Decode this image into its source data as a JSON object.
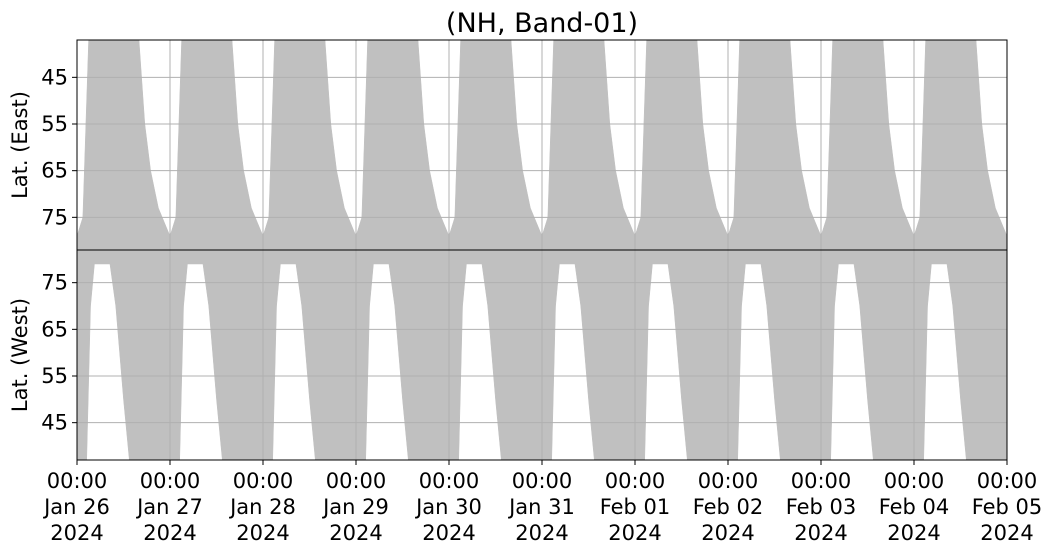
{
  "chart_data": [
    {
      "type": "area",
      "title": "(NH, Band-01)",
      "ylabel": "Lat. (East)",
      "color": "#c0c0c0",
      "grid": true,
      "ylim": [
        82,
        37
      ],
      "yticks": [
        45,
        55,
        65,
        75
      ],
      "x": [
        "2024-01-26 00:00",
        "2024-01-26 01:30",
        "2024-01-26 03:00",
        "2024-01-26 16:00",
        "2024-01-26 17:30",
        "2024-01-26 19:00",
        "2024-01-26 21:00",
        "2024-01-26 23:00",
        "2024-01-27 00:00",
        "2024-01-27 01:30",
        "2024-01-27 03:00",
        "2024-01-27 16:00",
        "2024-01-27 17:30",
        "2024-01-27 19:00",
        "2024-01-27 21:00",
        "2024-01-27 23:00",
        "2024-01-28 00:00",
        "2024-01-28 01:30",
        "2024-01-28 03:00",
        "2024-01-28 16:00",
        "2024-01-28 17:30",
        "2024-01-28 19:00",
        "2024-01-28 21:00",
        "2024-01-28 23:00",
        "2024-01-29 00:00",
        "2024-01-29 01:30",
        "2024-01-29 03:00",
        "2024-01-29 16:00",
        "2024-01-29 17:30",
        "2024-01-29 19:00",
        "2024-01-29 21:00",
        "2024-01-29 23:00",
        "2024-01-30 00:00",
        "2024-01-30 01:30",
        "2024-01-30 03:00",
        "2024-01-30 16:00",
        "2024-01-30 17:30",
        "2024-01-30 19:00",
        "2024-01-30 21:00",
        "2024-01-30 23:00",
        "2024-01-31 00:00",
        "2024-01-31 01:30",
        "2024-01-31 03:00",
        "2024-01-31 16:00",
        "2024-01-31 17:30",
        "2024-01-31 19:00",
        "2024-01-31 21:00",
        "2024-01-31 23:00",
        "2024-02-01 00:00",
        "2024-02-01 01:30",
        "2024-02-01 03:00",
        "2024-02-01 16:00",
        "2024-02-01 17:30",
        "2024-02-01 19:00",
        "2024-02-01 21:00",
        "2024-02-01 23:00",
        "2024-02-02 00:00",
        "2024-02-02 01:30",
        "2024-02-02 03:00",
        "2024-02-02 16:00",
        "2024-02-02 17:30",
        "2024-02-02 19:00",
        "2024-02-02 21:00",
        "2024-02-02 23:00",
        "2024-02-03 00:00",
        "2024-02-03 01:30",
        "2024-02-03 03:00",
        "2024-02-03 16:00",
        "2024-02-03 17:30",
        "2024-02-03 19:00",
        "2024-02-03 21:00",
        "2024-02-03 23:00",
        "2024-02-04 00:00",
        "2024-02-04 01:30",
        "2024-02-04 03:00",
        "2024-02-04 16:00",
        "2024-02-04 17:30",
        "2024-02-04 19:00",
        "2024-02-04 21:00",
        "2024-02-04 23:00",
        "2024-02-05 00:00"
      ],
      "values": [
        79,
        75,
        37,
        37,
        55,
        65,
        73,
        77,
        79,
        75,
        37,
        37,
        55,
        65,
        73,
        77,
        79,
        75,
        37,
        37,
        55,
        65,
        73,
        77,
        79,
        75,
        37,
        37,
        55,
        65,
        73,
        77,
        79,
        75,
        37,
        37,
        55,
        65,
        73,
        77,
        79,
        75,
        37,
        37,
        55,
        65,
        73,
        77,
        79,
        75,
        37,
        37,
        55,
        65,
        73,
        77,
        79,
        75,
        37,
        37,
        55,
        65,
        73,
        77,
        79,
        75,
        37,
        37,
        55,
        65,
        73,
        77,
        79,
        75,
        37,
        37,
        55,
        65,
        73,
        77,
        79
      ]
    },
    {
      "type": "area",
      "ylabel": "Lat. (West)",
      "color": "#c0c0c0",
      "grid": true,
      "ylim": [
        37,
        82
      ],
      "yticks": [
        45,
        55,
        65,
        75
      ],
      "xlim": [
        "2024-01-26 00:00",
        "2024-02-05 00:00"
      ],
      "xticks": [
        {
          "value": "2024-01-26 00:00",
          "label": "00:00\nJan 26\n2024"
        },
        {
          "value": "2024-01-27 00:00",
          "label": "00:00\nJan 27\n2024"
        },
        {
          "value": "2024-01-28 00:00",
          "label": "00:00\nJan 28\n2024"
        },
        {
          "value": "2024-01-29 00:00",
          "label": "00:00\nJan 29\n2024"
        },
        {
          "value": "2024-01-30 00:00",
          "label": "00:00\nJan 30\n2024"
        },
        {
          "value": "2024-01-31 00:00",
          "label": "00:00\nJan 31\n2024"
        },
        {
          "value": "2024-02-01 00:00",
          "label": "00:00\nFeb 01\n2024"
        },
        {
          "value": "2024-02-02 00:00",
          "label": "00:00\nFeb 02\n2024"
        },
        {
          "value": "2024-02-03 00:00",
          "label": "00:00\nFeb 03\n2024"
        },
        {
          "value": "2024-02-04 00:00",
          "label": "00:00\nFeb 04\n2024"
        },
        {
          "value": "2024-02-05 00:00",
          "label": "00:00\nFeb 05\n2024"
        }
      ],
      "x": [
        "2024-01-26 00:00",
        "2024-01-26 02:30",
        "2024-01-26 03:30",
        "2024-01-26 04:30",
        "2024-01-26 08:30",
        "2024-01-26 10:00",
        "2024-01-26 12:00",
        "2024-01-26 13:30",
        "2024-01-27 02:30",
        "2024-01-27 03:30",
        "2024-01-27 04:30",
        "2024-01-27 08:30",
        "2024-01-27 10:00",
        "2024-01-27 12:00",
        "2024-01-27 13:30",
        "2024-01-28 02:30",
        "2024-01-28 03:30",
        "2024-01-28 04:30",
        "2024-01-28 08:30",
        "2024-01-28 10:00",
        "2024-01-28 12:00",
        "2024-01-28 13:30",
        "2024-01-29 02:30",
        "2024-01-29 03:30",
        "2024-01-29 04:30",
        "2024-01-29 08:30",
        "2024-01-29 10:00",
        "2024-01-29 12:00",
        "2024-01-29 13:30",
        "2024-01-30 02:30",
        "2024-01-30 03:30",
        "2024-01-30 04:30",
        "2024-01-30 08:30",
        "2024-01-30 10:00",
        "2024-01-30 12:00",
        "2024-01-30 13:30",
        "2024-01-31 02:30",
        "2024-01-31 03:30",
        "2024-01-31 04:30",
        "2024-01-31 08:30",
        "2024-01-31 10:00",
        "2024-01-31 12:00",
        "2024-01-31 13:30",
        "2024-02-01 02:30",
        "2024-02-01 03:30",
        "2024-02-01 04:30",
        "2024-02-01 08:30",
        "2024-02-01 10:00",
        "2024-02-01 12:00",
        "2024-02-01 13:30",
        "2024-02-02 02:30",
        "2024-02-02 03:30",
        "2024-02-02 04:30",
        "2024-02-02 08:30",
        "2024-02-02 10:00",
        "2024-02-02 12:00",
        "2024-02-02 13:30",
        "2024-02-03 02:30",
        "2024-02-03 03:30",
        "2024-02-03 04:30",
        "2024-02-03 08:30",
        "2024-02-03 10:00",
        "2024-02-03 12:00",
        "2024-02-03 13:30",
        "2024-02-04 02:30",
        "2024-02-04 03:30",
        "2024-02-04 04:30",
        "2024-02-04 08:30",
        "2024-02-04 10:00",
        "2024-02-04 12:00",
        "2024-02-04 13:30",
        "2024-02-05 00:00"
      ],
      "values": [
        37,
        37,
        70,
        79,
        79,
        70,
        50,
        37,
        37,
        70,
        79,
        79,
        70,
        50,
        37,
        37,
        70,
        79,
        79,
        70,
        50,
        37,
        37,
        70,
        79,
        79,
        70,
        50,
        37,
        37,
        70,
        79,
        79,
        70,
        50,
        37,
        37,
        70,
        79,
        79,
        70,
        50,
        37,
        37,
        70,
        79,
        79,
        70,
        50,
        37,
        37,
        70,
        79,
        79,
        70,
        50,
        37,
        37,
        70,
        79,
        79,
        70,
        50,
        37,
        37,
        70,
        79,
        79,
        70,
        50,
        37,
        37
      ]
    }
  ]
}
